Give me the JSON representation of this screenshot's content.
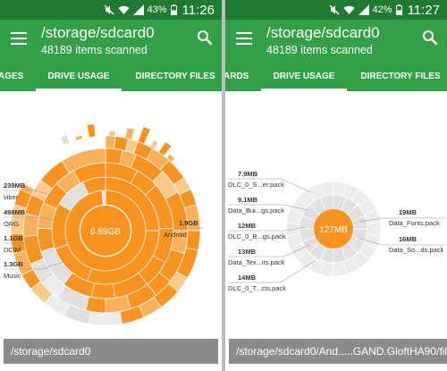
{
  "colors": {
    "status_bar": "#1f7a32",
    "app_bar": "#33a048",
    "accent": "#f7931e",
    "path_bar": "#8b8b8b"
  },
  "left": {
    "status": {
      "battery": "43%",
      "time": "11:26"
    },
    "appbar": {
      "title": "/storage/sdcard0",
      "subtitle": "48189 items scanned",
      "menu_icon": "menu-icon",
      "search_icon": "search-icon"
    },
    "tabs": [
      {
        "label": "AGES"
      },
      {
        "label": "DRIVE USAGE"
      },
      {
        "label": "DIRECTORY FILES"
      }
    ],
    "chart": {
      "center_label": "6.69GB",
      "labels": [
        {
          "size": "239MB",
          "name": "viber"
        },
        {
          "size": "498MB",
          "name": "ORG"
        },
        {
          "size": "1.1GB",
          "name": "DCIM"
        },
        {
          "size": "1.3GB",
          "name": "Music"
        },
        {
          "size": "1.9GB",
          "name": "Android"
        }
      ]
    },
    "path": "/storage/sdcard0"
  },
  "right": {
    "status": {
      "battery": "42%",
      "time": "11:27"
    },
    "appbar": {
      "title": "/storage/sdcard0",
      "subtitle": "48189 items scanned",
      "menu_icon": "menu-icon",
      "search_icon": "search-icon"
    },
    "tabs": [
      {
        "label": "ARDS"
      },
      {
        "label": "DRIVE USAGE"
      },
      {
        "label": "DIRECTORY FILES"
      }
    ],
    "chart": {
      "center_label": "127MB",
      "labels": [
        {
          "size": "7.9MB",
          "name": "DLC_0_S...er.pack"
        },
        {
          "size": "9.1MB",
          "name": "Data_Bui...gs.pack"
        },
        {
          "size": "12MB",
          "name": "DLC_0_B...gs.pack"
        },
        {
          "size": "13MB",
          "name": "Data_Tex...its.pack"
        },
        {
          "size": "14MB",
          "name": "DLC_0_T...cts.pack"
        },
        {
          "size": "19MB",
          "name": "Data_Fonts.pack"
        },
        {
          "size": "16MB",
          "name": "Data_So...ds.pack"
        }
      ]
    },
    "path": "/storage/sdcard0/And.....GAND.GloftHA90/files"
  }
}
